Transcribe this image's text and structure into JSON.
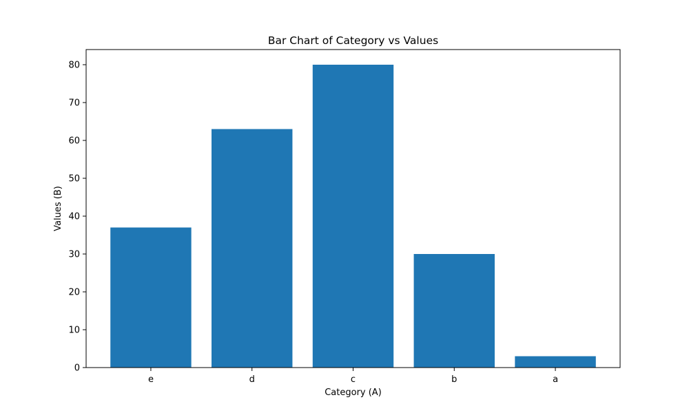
{
  "chart_data": {
    "type": "bar",
    "title": "Bar Chart of Category vs Values",
    "xlabel": "Category (A)",
    "ylabel": "Values (B)",
    "categories": [
      "e",
      "d",
      "c",
      "b",
      "a"
    ],
    "values": [
      37,
      63,
      80,
      30,
      3
    ],
    "ylim": [
      0,
      84
    ],
    "yticks": [
      0,
      10,
      20,
      30,
      40,
      50,
      60,
      70,
      80
    ],
    "grid": false,
    "legend": "none",
    "bar_color": "#1f77b4"
  }
}
